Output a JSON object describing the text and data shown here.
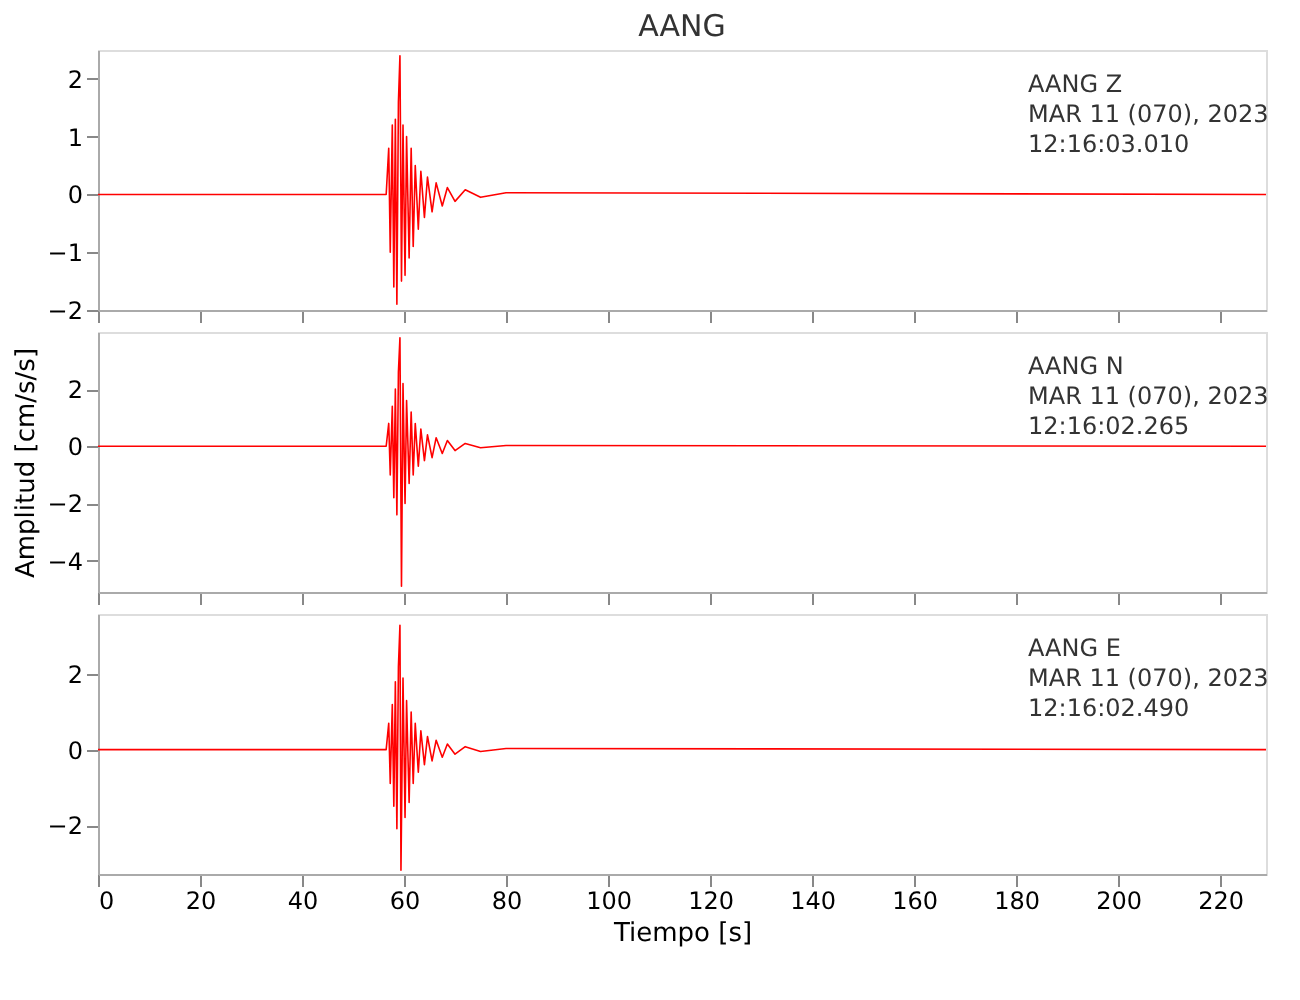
{
  "chart_data": [
    {
      "type": "line",
      "title": "AANG",
      "annotations": [
        "AANG Z",
        "MAR 11 (070), 2023",
        "12:16:03.010"
      ],
      "xlim": [
        0,
        229
      ],
      "xticks": [
        0,
        20,
        40,
        60,
        80,
        100,
        120,
        140,
        160,
        180,
        200,
        220
      ],
      "ylim": [
        -2,
        2.5
      ],
      "yticks": [
        -2,
        -1,
        0,
        1,
        2
      ],
      "tick_labels": "y",
      "grid": false,
      "line_style": "solid",
      "series": [
        {
          "color": "#ff0000",
          "x": [
            0,
            20,
            40,
            56.5,
            57,
            57.3,
            57.7,
            58,
            58.3,
            58.6,
            58.9,
            59.2,
            59.5,
            59.8,
            60.2,
            60.5,
            61,
            61.4,
            61.8,
            62.2,
            62.8,
            63.3,
            64,
            64.6,
            65.5,
            66.3,
            67.5,
            68.5,
            70,
            72,
            75,
            80,
            229
          ],
          "values": [
            0,
            0,
            0,
            0,
            0.8,
            -1.0,
            1.2,
            -1.6,
            1.3,
            -1.9,
            1.6,
            2.4,
            -1.5,
            1.2,
            -1.4,
            1.0,
            -1.1,
            0.8,
            -0.9,
            0.5,
            -0.6,
            0.4,
            -0.4,
            0.3,
            -0.3,
            0.2,
            -0.2,
            0.12,
            -0.12,
            0.08,
            -0.05,
            0.03,
            0
          ]
        }
      ]
    },
    {
      "type": "line",
      "ylabel": "Amplitud [cm/s/s]",
      "annotations": [
        "AANG N",
        "MAR 11 (070), 2023",
        "12:16:02.265"
      ],
      "xlim": [
        0,
        229
      ],
      "xticks": [
        0,
        20,
        40,
        60,
        80,
        100,
        120,
        140,
        160,
        180,
        200,
        220
      ],
      "ylim": [
        -5.1,
        4
      ],
      "yticks": [
        -4,
        -2,
        0,
        2
      ],
      "tick_labels": "y",
      "grid": false,
      "line_style": "solid",
      "series": [
        {
          "color": "#ff0000",
          "x": [
            0,
            20,
            40,
            56.5,
            57,
            57.3,
            57.7,
            58,
            58.3,
            58.6,
            58.9,
            59.2,
            59.5,
            59.8,
            60.2,
            60.5,
            61,
            61.4,
            61.8,
            62.2,
            62.8,
            63.3,
            64,
            64.6,
            65.5,
            66.3,
            67.5,
            68.5,
            70,
            72,
            75,
            80,
            229
          ],
          "values": [
            0,
            0,
            0,
            0,
            0.8,
            -1.0,
            1.4,
            -1.8,
            2.0,
            -2.4,
            2.6,
            3.8,
            -4.9,
            2.2,
            -2.0,
            1.6,
            -1.3,
            1.2,
            -1.0,
            0.8,
            -0.7,
            0.6,
            -0.5,
            0.4,
            -0.4,
            0.3,
            -0.25,
            0.2,
            -0.15,
            0.1,
            -0.05,
            0.03,
            0
          ]
        }
      ]
    },
    {
      "type": "line",
      "xlabel": "Tiempo [s]",
      "annotations": [
        "AANG E",
        "MAR 11 (070), 2023",
        "12:16:02.490"
      ],
      "xlim": [
        0,
        229
      ],
      "xticks": [
        0,
        20,
        40,
        60,
        80,
        100,
        120,
        140,
        160,
        180,
        200,
        220
      ],
      "ylim": [
        -3.3,
        3.6
      ],
      "yticks": [
        -2,
        0,
        2
      ],
      "grid": false,
      "line_style": "solid",
      "series": [
        {
          "color": "#ff0000",
          "x": [
            0,
            20,
            40,
            56.5,
            57,
            57.3,
            57.7,
            58,
            58.3,
            58.6,
            58.9,
            59.2,
            59.4,
            59.8,
            60.2,
            60.5,
            61,
            61.4,
            61.8,
            62.2,
            62.8,
            63.3,
            64,
            64.6,
            65.5,
            66.3,
            67.5,
            68.5,
            70,
            72,
            75,
            80,
            229
          ],
          "values": [
            0,
            0,
            0,
            0,
            0.7,
            -0.9,
            1.2,
            -1.5,
            1.8,
            -2.1,
            2.2,
            3.3,
            -3.2,
            1.9,
            -1.8,
            1.3,
            -1.4,
            1.0,
            -0.9,
            0.7,
            -0.6,
            0.5,
            -0.4,
            0.35,
            -0.3,
            0.25,
            -0.2,
            0.15,
            -0.12,
            0.08,
            -0.05,
            0.03,
            0
          ]
        }
      ]
    }
  ]
}
